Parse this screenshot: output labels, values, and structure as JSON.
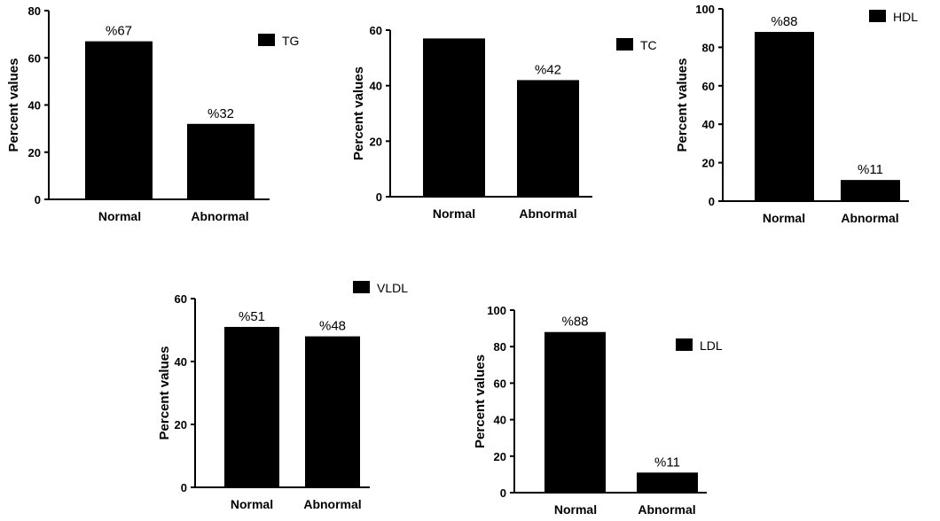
{
  "chart_data": [
    {
      "type": "bar",
      "categories": [
        "Normal",
        "Abnormal"
      ],
      "values": [
        67,
        32
      ],
      "data_labels": [
        "%67",
        "%32"
      ],
      "legend": "TG",
      "legend_placement": "top-right",
      "ylabel": "Percent values",
      "ylim": [
        0,
        80
      ],
      "yticks": [
        "0",
        "20",
        "40",
        "60",
        "80"
      ],
      "grid": false,
      "bar_color": "#000000"
    },
    {
      "type": "bar",
      "categories": [
        "Normal",
        "Abnormal"
      ],
      "values": [
        57,
        42
      ],
      "data_labels": [
        "",
        "%42"
      ],
      "legend": "TC",
      "legend_placement": "top-right",
      "ylabel": "Percent values",
      "ylim": [
        0,
        60
      ],
      "yticks": [
        "0",
        "20",
        "40",
        "60"
      ],
      "grid": false,
      "bar_color": "#000000"
    },
    {
      "type": "bar",
      "categories": [
        "Normal",
        "Abnormal"
      ],
      "values": [
        88,
        11
      ],
      "data_labels": [
        "%88",
        "%11"
      ],
      "legend": "HDL",
      "legend_placement": "top-right",
      "ylabel": "Percent values",
      "ylim": [
        0,
        100
      ],
      "yticks": [
        "0",
        "20",
        "40",
        "60",
        "80",
        "100"
      ],
      "grid": false,
      "bar_color": "#000000"
    },
    {
      "type": "bar",
      "categories": [
        "Normal",
        "Abnormal"
      ],
      "values": [
        51,
        48
      ],
      "data_labels": [
        "%51",
        "%48"
      ],
      "legend": "VLDL",
      "legend_placement": "top-right",
      "ylabel": "Percent values",
      "ylim": [
        0,
        60
      ],
      "yticks": [
        "0",
        "20",
        "40",
        "60"
      ],
      "grid": false,
      "bar_color": "#000000"
    },
    {
      "type": "bar",
      "categories": [
        "Normal",
        "Abnormal"
      ],
      "values": [
        88,
        11
      ],
      "data_labels": [
        "%88",
        "%11"
      ],
      "legend": "LDL",
      "legend_placement": "right",
      "ylabel": "Percent values",
      "ylim": [
        0,
        100
      ],
      "yticks": [
        "0",
        "20",
        "40",
        "60",
        "80",
        "100"
      ],
      "grid": false,
      "bar_color": "#000000"
    }
  ]
}
